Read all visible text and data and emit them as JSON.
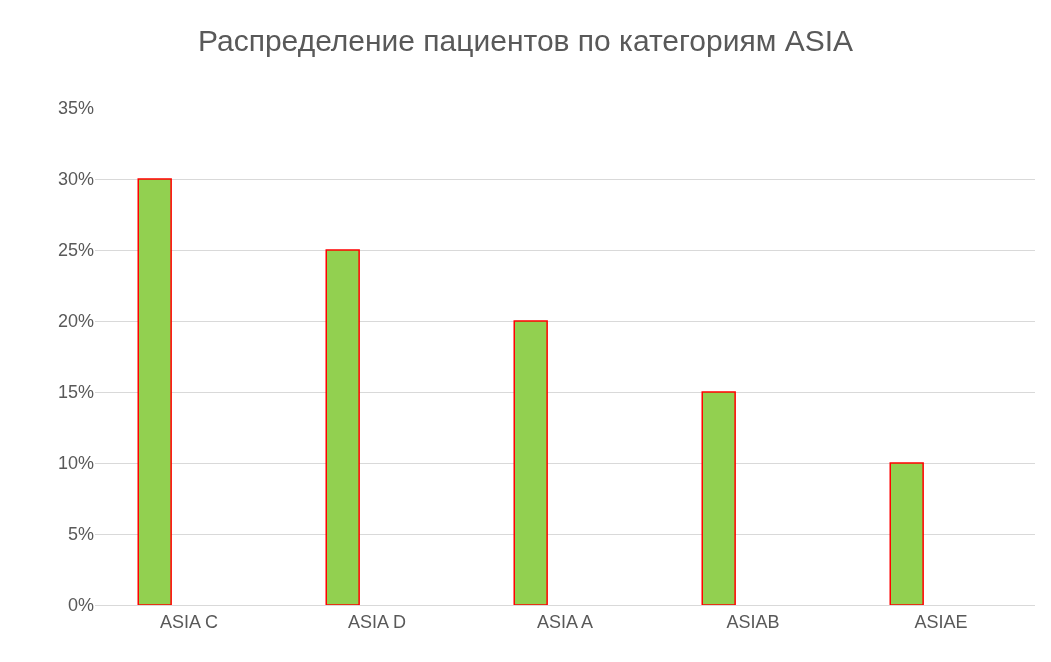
{
  "chart_data": {
    "type": "bar",
    "title": "Распределение пациентов по категориям ASIA",
    "categories": [
      "ASIA C",
      "ASIA D",
      "ASIA A",
      "ASIAB",
      "ASIAE"
    ],
    "values": [
      30,
      25,
      20,
      15,
      10
    ],
    "color": "#92d050",
    "ylim": [
      0,
      35
    ],
    "yticks": [
      {
        "value": 0,
        "label": "0%"
      },
      {
        "value": 5,
        "label": "5%"
      },
      {
        "value": 10,
        "label": "10%"
      },
      {
        "value": 15,
        "label": "15%"
      },
      {
        "value": 20,
        "label": "20%"
      },
      {
        "value": 25,
        "label": "25%"
      },
      {
        "value": 30,
        "label": "30%"
      },
      {
        "value": 35,
        "label": "35%"
      }
    ],
    "grid": "y"
  }
}
